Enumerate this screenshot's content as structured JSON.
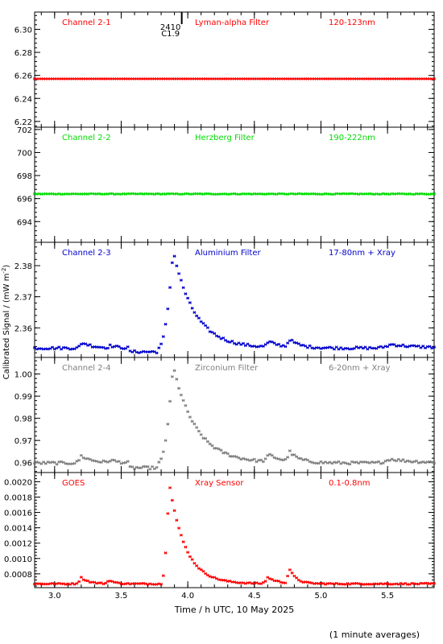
{
  "figure": {
    "ylabel": "Calibrated Signal / (mW m",
    "ylabel_sup": "-2",
    "ylabel_end": ")",
    "xlabel": "Time / h UTC, 10 May 2025",
    "footnote": "(1 minute averages)",
    "event": {
      "time": 3.87,
      "label_top": "2410",
      "label_bottom": "C1.9"
    }
  },
  "colors": {
    "ch1": "#ff0000",
    "ch2": "#00dd00",
    "ch3": "#0000cc",
    "ch4": "#808080",
    "goes": "#ff0000"
  },
  "chart_data": [
    {
      "type": "scatter",
      "labels": [
        "Channel 2-1",
        "Lyman-alpha Filter",
        "120-123nm"
      ],
      "color": "#ff0000",
      "xlim": [
        2.85,
        5.85
      ],
      "ylim": [
        6.215,
        6.315
      ],
      "yticks": [
        6.22,
        6.24,
        6.26,
        6.28,
        6.3
      ],
      "ytick_labels": [
        "6.22",
        "6.24",
        "6.26",
        "6.28",
        "6.30"
      ],
      "baseline": 6.257,
      "noise": 0,
      "offpeak": 0,
      "peaks": []
    },
    {
      "type": "scatter",
      "labels": [
        "Channel 2-2",
        "Herzberg Filter",
        "190-222nm"
      ],
      "color": "#00dd00",
      "xlim": [
        2.85,
        5.85
      ],
      "ylim": [
        692.2,
        702.2
      ],
      "yticks": [
        694,
        696,
        698,
        700,
        702
      ],
      "ytick_labels": [
        "694",
        "696",
        "698",
        "700",
        "702"
      ],
      "baseline": 696.4,
      "noise": 0.03,
      "offpeak": 0,
      "peaks": []
    },
    {
      "type": "scatter",
      "labels": [
        "Channel 2-3",
        "Aluminium Filter",
        "17-80nm + Xray"
      ],
      "color": "#0000cc",
      "xlim": [
        2.85,
        5.85
      ],
      "ylim": [
        2.3505,
        2.3875
      ],
      "yticks": [
        2.36,
        2.37,
        2.38
      ],
      "ytick_labels": [
        "2.36",
        "2.37",
        "2.38"
      ],
      "baseline": 2.3535,
      "noise": 0.0004,
      "offpeak": 0.0012,
      "peaks": [
        {
          "t0": 3.78,
          "tp": 3.89,
          "amp": 0.0314,
          "decay": 0.16
        },
        {
          "t0": 3.16,
          "tp": 3.21,
          "amp": 0.0018,
          "decay": 0.08
        },
        {
          "t0": 3.38,
          "tp": 3.42,
          "amp": 0.0007,
          "decay": 0.05
        },
        {
          "t0": 4.55,
          "tp": 4.61,
          "amp": 0.0017,
          "decay": 0.1
        },
        {
          "t0": 4.73,
          "tp": 4.76,
          "amp": 0.0025,
          "decay": 0.07
        },
        {
          "t0": 5.4,
          "tp": 5.53,
          "amp": 0.0012,
          "decay": 0.2
        }
      ]
    },
    {
      "type": "scatter",
      "labels": [
        "Channel 2-4",
        "Zirconium Filter",
        "6-20nm + Xray"
      ],
      "color": "#808080",
      "xlim": [
        2.85,
        5.85
      ],
      "ylim": [
        0.9555,
        1.0075
      ],
      "yticks": [
        0.96,
        0.97,
        0.98,
        0.99,
        1.0
      ],
      "ytick_labels": [
        "0.96",
        "0.97",
        "0.98",
        "0.99",
        "1.00"
      ],
      "baseline": 0.9598,
      "noise": 0.0006,
      "offpeak": 0.0022,
      "peaks": [
        {
          "t0": 3.78,
          "tp": 3.89,
          "amp": 0.044,
          "decay": 0.17
        },
        {
          "t0": 3.15,
          "tp": 3.2,
          "amp": 0.0032,
          "decay": 0.09
        },
        {
          "t0": 3.38,
          "tp": 3.42,
          "amp": 0.0012,
          "decay": 0.05
        },
        {
          "t0": 4.55,
          "tp": 4.61,
          "amp": 0.0032,
          "decay": 0.1
        },
        {
          "t0": 4.73,
          "tp": 4.76,
          "amp": 0.0045,
          "decay": 0.07
        },
        {
          "t0": 5.4,
          "tp": 5.52,
          "amp": 0.0018,
          "decay": 0.2
        }
      ]
    },
    {
      "type": "scatter",
      "labels": [
        "GOES",
        "Xray Sensor",
        "0.1-0.8nm"
      ],
      "color": "#ff0000",
      "xlim": [
        2.85,
        5.85
      ],
      "ylim": [
        0.00062,
        0.00212
      ],
      "yticks": [
        0.0008,
        0.001,
        0.0012,
        0.0014,
        0.0016,
        0.0018,
        0.002
      ],
      "ytick_labels": [
        "0.0008",
        "0.0010",
        "0.0012",
        "0.0014",
        "0.0016",
        "0.0018",
        "0.0020"
      ],
      "baseline": 0.00067,
      "noise": 8e-06,
      "offpeak": 0,
      "peaks": [
        {
          "t0": 3.8,
          "tp": 3.86,
          "amp": 0.00133,
          "decay": 0.12
        },
        {
          "t0": 3.15,
          "tp": 3.2,
          "amp": 8e-05,
          "decay": 0.06
        },
        {
          "t0": 3.37,
          "tp": 3.41,
          "amp": 5e-05,
          "decay": 0.04
        },
        {
          "t0": 4.55,
          "tp": 4.6,
          "amp": 8e-05,
          "decay": 0.08
        },
        {
          "t0": 4.73,
          "tp": 4.76,
          "amp": 0.0002,
          "decay": 0.05
        }
      ]
    }
  ],
  "xaxis": {
    "ticks": [
      3.0,
      3.5,
      4.0,
      4.5,
      5.0,
      5.5
    ],
    "tick_labels": [
      "3.0",
      "3.5",
      "4.0",
      "4.5",
      "5.0",
      "5.5"
    ],
    "minor_step": 0.1
  }
}
